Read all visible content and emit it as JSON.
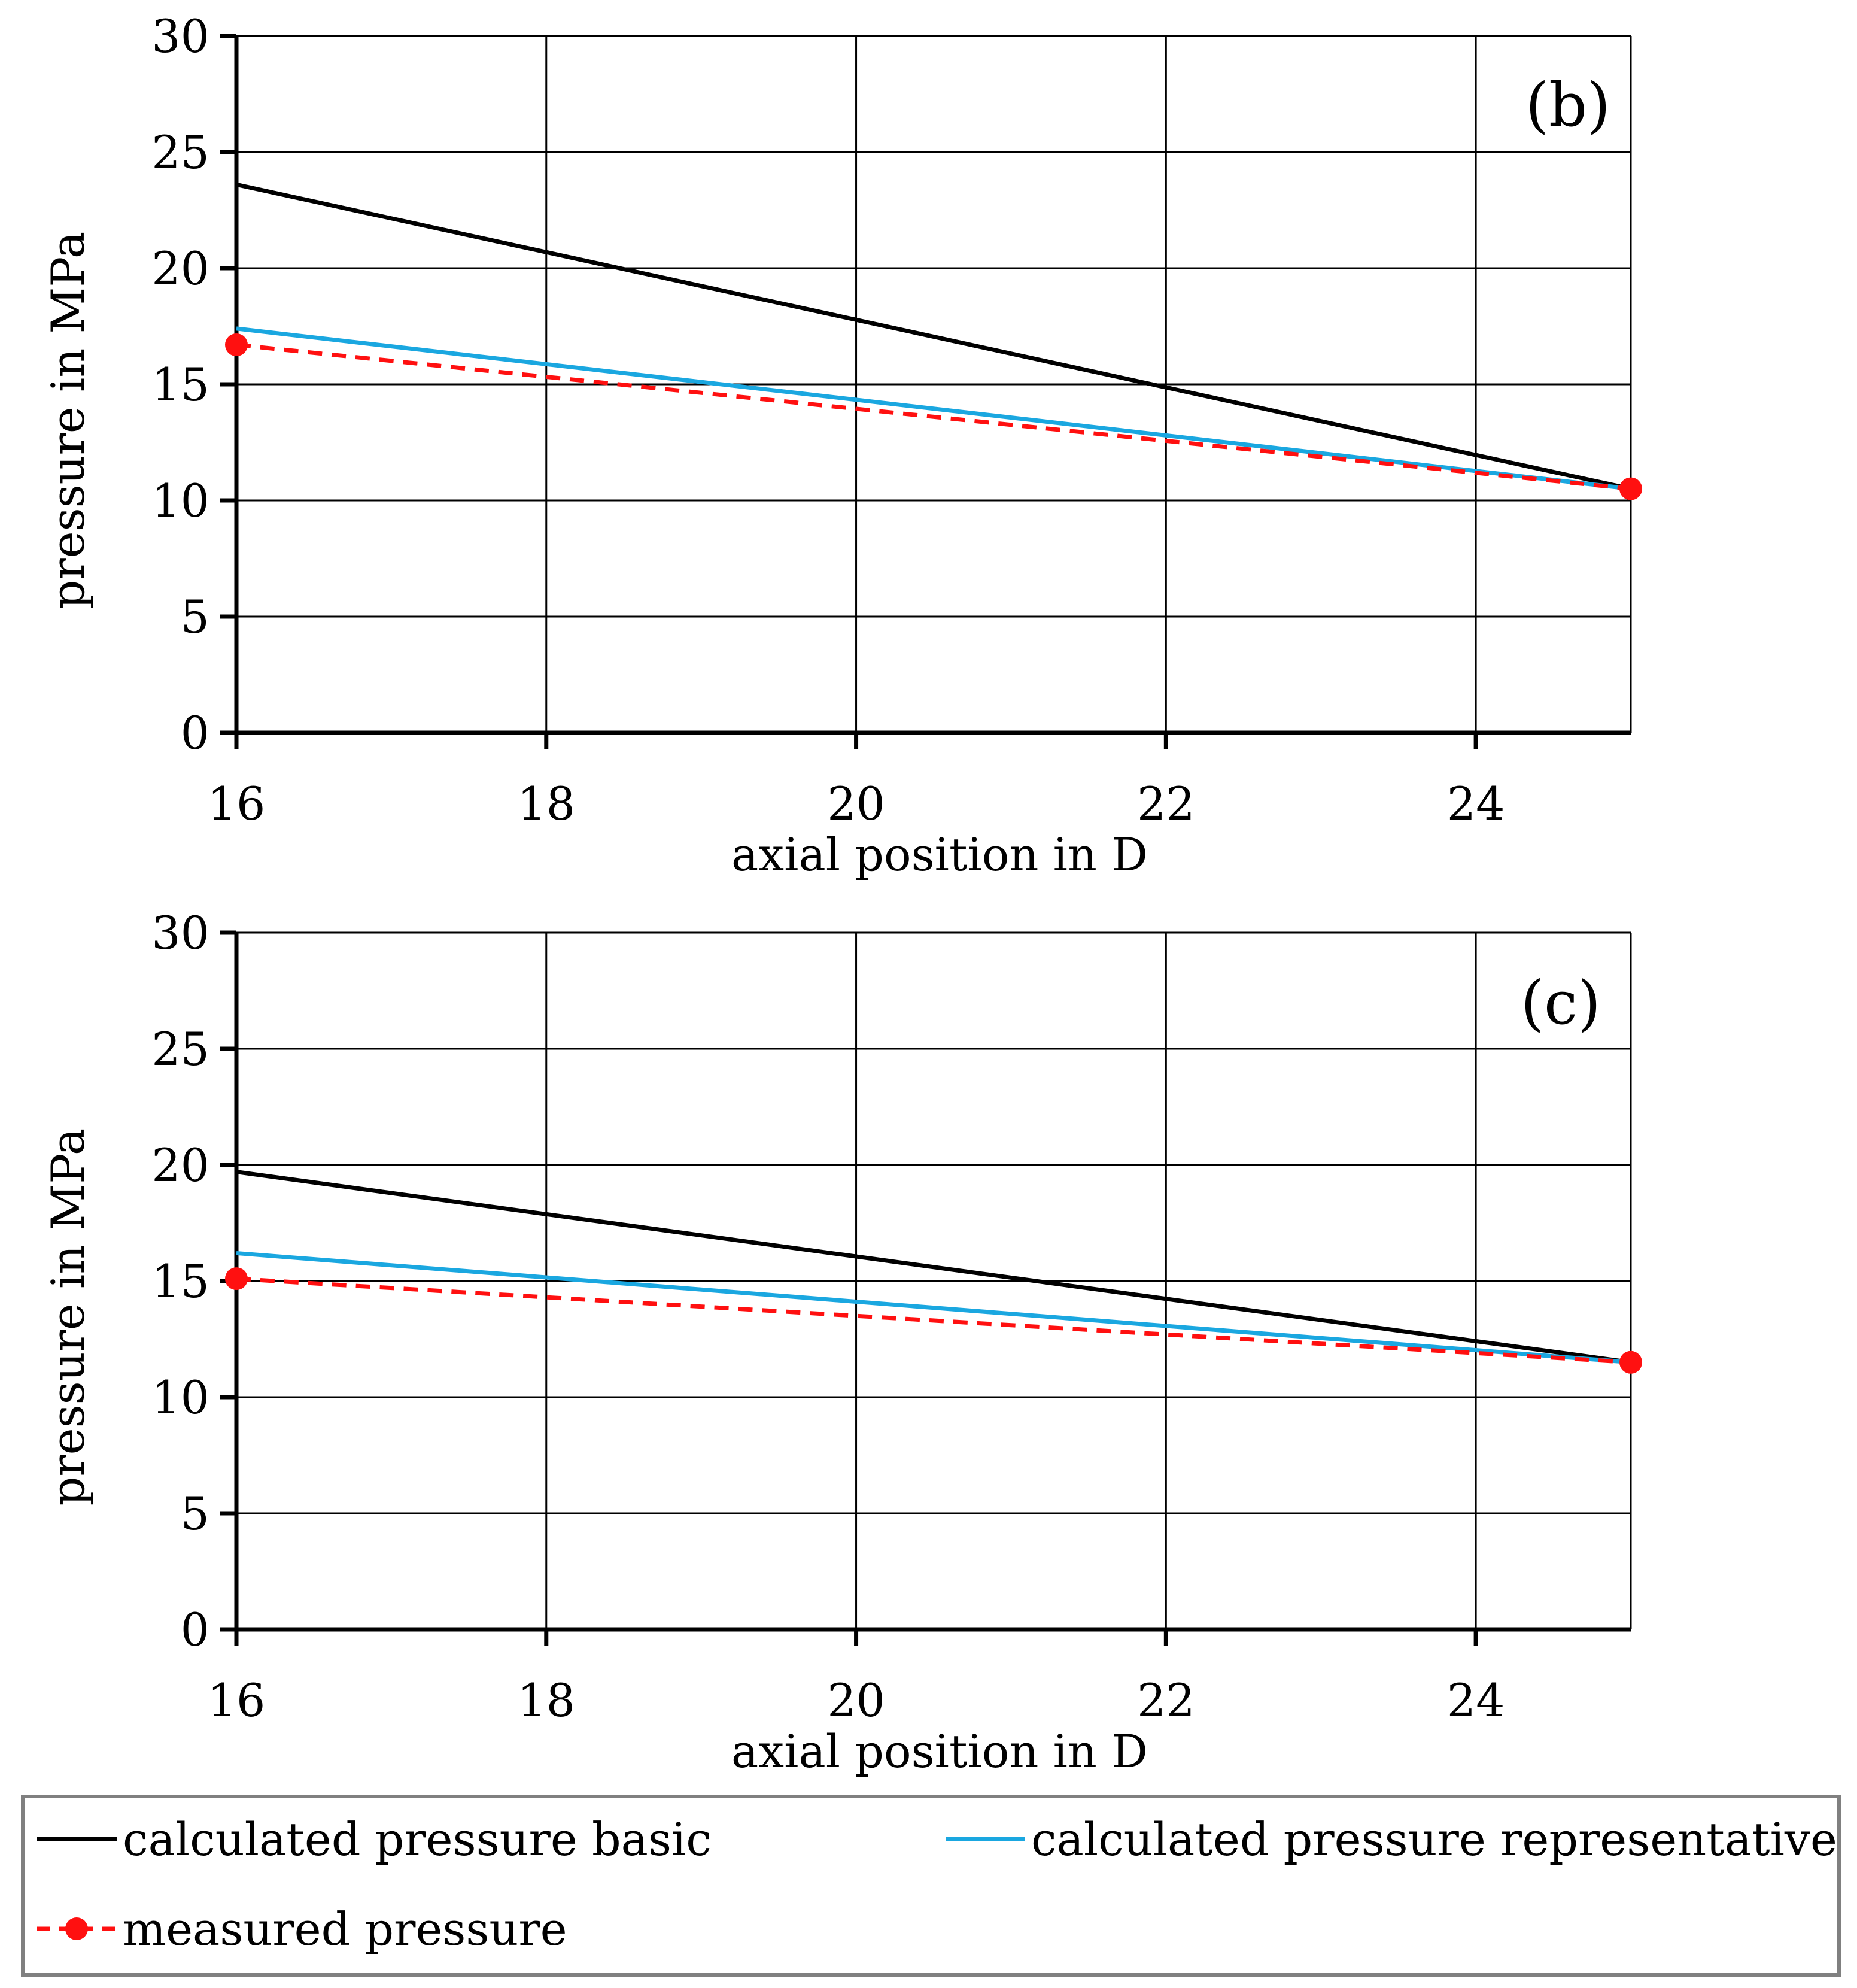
{
  "chart_data": [
    {
      "type": "line",
      "panel_label": "(b)",
      "xlabel": "axial position in D",
      "ylabel": "pressure in MPa",
      "xlim": [
        16,
        25
      ],
      "ylim": [
        0,
        30
      ],
      "xticks": [
        16,
        18,
        20,
        22,
        24
      ],
      "yticks": [
        0,
        5,
        10,
        15,
        20,
        25,
        30
      ],
      "grid": true,
      "series": [
        {
          "name": "calculated pressure basic",
          "color": "#000000",
          "style": "solid",
          "markers": false,
          "x": [
            16,
            25
          ],
          "y": [
            23.6,
            10.5
          ]
        },
        {
          "name": "calculated pressure representative",
          "color": "#1aa7e0",
          "style": "solid",
          "markers": false,
          "x": [
            16,
            25
          ],
          "y": [
            17.4,
            10.5
          ]
        },
        {
          "name": "measured pressure",
          "color": "#ff1010",
          "style": "dashed",
          "markers": true,
          "x": [
            16,
            25
          ],
          "y": [
            16.7,
            10.5
          ]
        }
      ]
    },
    {
      "type": "line",
      "panel_label": "(c)",
      "xlabel": "axial position in D",
      "ylabel": "pressure in MPa",
      "xlim": [
        16,
        25
      ],
      "ylim": [
        0,
        30
      ],
      "xticks": [
        16,
        18,
        20,
        22,
        24
      ],
      "yticks": [
        0,
        5,
        10,
        15,
        20,
        25,
        30
      ],
      "grid": true,
      "series": [
        {
          "name": "calculated pressure basic",
          "color": "#000000",
          "style": "solid",
          "markers": false,
          "x": [
            16,
            25
          ],
          "y": [
            19.7,
            11.5
          ]
        },
        {
          "name": "calculated pressure representative",
          "color": "#1aa7e0",
          "style": "solid",
          "markers": false,
          "x": [
            16,
            25
          ],
          "y": [
            16.2,
            11.5
          ]
        },
        {
          "name": "measured pressure",
          "color": "#ff1010",
          "style": "dashed",
          "markers": true,
          "x": [
            16,
            25
          ],
          "y": [
            15.1,
            11.5
          ]
        }
      ]
    }
  ],
  "legend": {
    "placement": "bottom",
    "items": [
      {
        "label": "calculated pressure basic",
        "color": "#000000",
        "style": "solid",
        "marker": false
      },
      {
        "label": "calculated pressure representative",
        "color": "#1aa7e0",
        "style": "solid",
        "marker": false
      },
      {
        "label": "measured pressure",
        "color": "#ff1010",
        "style": "dashed",
        "marker": true
      }
    ]
  }
}
